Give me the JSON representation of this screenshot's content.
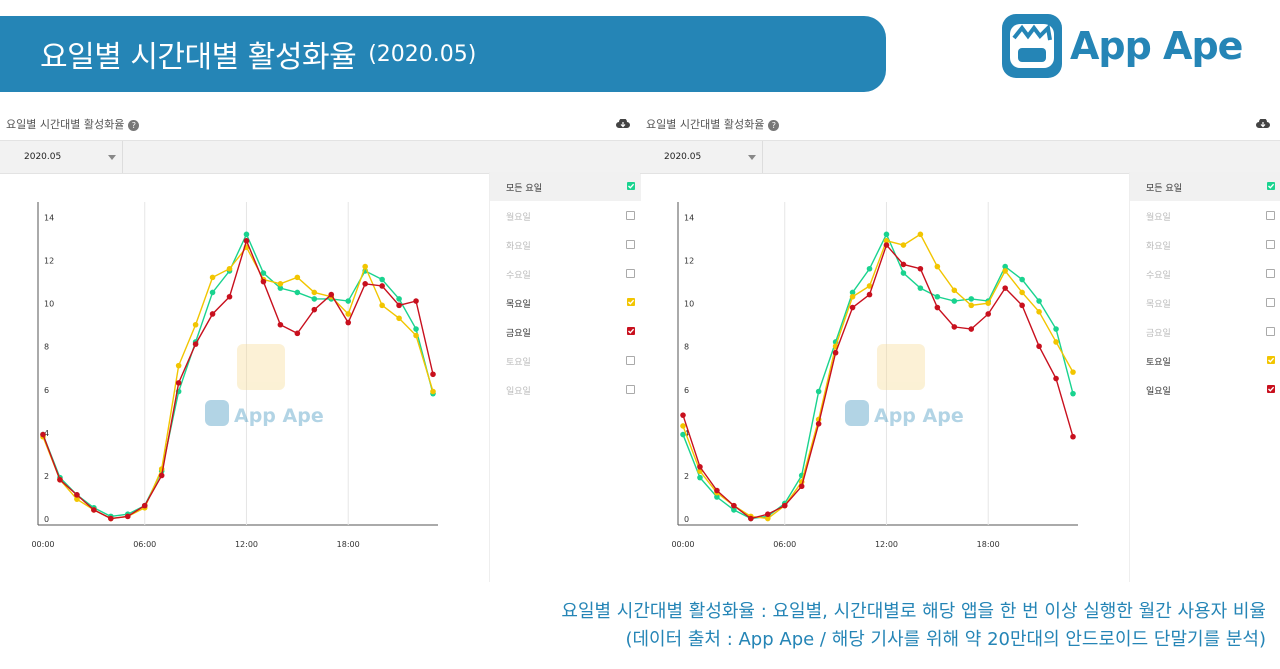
{
  "banner": {
    "title": "요일별 시간대별 활성화율",
    "period": "(2020.05)"
  },
  "logo": {
    "text": "App Ape"
  },
  "footer": {
    "line1": "요일별 시간대별 활성화율 : 요일별, 시간대별로 해당 앱을 한 번 이상 실행한 월간 사용자 비율",
    "line2": "(데이터 출처 : App Ape / 해당 기사를 위해 약 20만대의 안드로이드 단말기를 분석)"
  },
  "panels": [
    {
      "header": "요일별 시간대별 활성화율",
      "help": "?",
      "dropdown": "2020.05",
      "legend": [
        {
          "label": "모든 요일",
          "checked": true,
          "color": "#19d38f"
        },
        {
          "label": "월요일",
          "checked": false,
          "color": ""
        },
        {
          "label": "화요일",
          "checked": false,
          "color": ""
        },
        {
          "label": "수요일",
          "checked": false,
          "color": ""
        },
        {
          "label": "목요일",
          "checked": true,
          "color": "#f2c500"
        },
        {
          "label": "금요일",
          "checked": true,
          "color": "#c8101e"
        },
        {
          "label": "토요일",
          "checked": false,
          "color": ""
        },
        {
          "label": "일요일",
          "checked": false,
          "color": ""
        }
      ],
      "watermark": "App Ape"
    },
    {
      "header": "요일별 시간대별 활성화율",
      "help": "?",
      "dropdown": "2020.05",
      "legend": [
        {
          "label": "모든 요일",
          "checked": true,
          "color": "#19d38f"
        },
        {
          "label": "월요일",
          "checked": false,
          "color": ""
        },
        {
          "label": "화요일",
          "checked": false,
          "color": ""
        },
        {
          "label": "수요일",
          "checked": false,
          "color": ""
        },
        {
          "label": "목요일",
          "checked": false,
          "color": ""
        },
        {
          "label": "금요일",
          "checked": false,
          "color": ""
        },
        {
          "label": "토요일",
          "checked": true,
          "color": "#f2c500"
        },
        {
          "label": "일요일",
          "checked": true,
          "color": "#c8101e"
        }
      ],
      "watermark": "App Ape"
    }
  ],
  "chart_data": [
    {
      "type": "line",
      "title": "요일별 시간대별 활성화율",
      "x": [
        0,
        1,
        2,
        3,
        4,
        5,
        6,
        7,
        8,
        9,
        10,
        11,
        12,
        13,
        14,
        15,
        16,
        17,
        18,
        19,
        20,
        21,
        22,
        23
      ],
      "xticks": [
        "00:00",
        "06:00",
        "12:00",
        "18:00"
      ],
      "ylim": [
        0,
        15
      ],
      "yticks": [
        0,
        2,
        4,
        6,
        8,
        10,
        12,
        14
      ],
      "series": [
        {
          "name": "모든 요일",
          "color": "#19d38f",
          "values": [
            4.2,
            2.2,
            1.4,
            0.8,
            0.4,
            0.5,
            0.9,
            2.5,
            6.2,
            8.5,
            10.8,
            11.8,
            13.5,
            11.7,
            11.0,
            10.8,
            10.5,
            10.5,
            10.4,
            11.8,
            11.4,
            10.5,
            9.1,
            6.1
          ]
        },
        {
          "name": "목요일",
          "color": "#f2c500",
          "values": [
            4.1,
            2.1,
            1.2,
            0.7,
            0.3,
            0.4,
            0.8,
            2.6,
            7.4,
            9.3,
            11.5,
            11.9,
            12.9,
            11.4,
            11.2,
            11.5,
            10.8,
            10.6,
            9.8,
            12.0,
            10.2,
            9.6,
            8.8,
            6.2
          ]
        },
        {
          "name": "금요일",
          "color": "#c8101e",
          "values": [
            4.2,
            2.1,
            1.4,
            0.7,
            0.3,
            0.4,
            0.9,
            2.3,
            6.6,
            8.4,
            9.8,
            10.6,
            13.2,
            11.3,
            9.3,
            8.9,
            10.0,
            10.7,
            9.4,
            11.2,
            11.1,
            10.2,
            10.4,
            7.0
          ]
        }
      ]
    },
    {
      "type": "line",
      "title": "요일별 시간대별 활성화율",
      "x": [
        0,
        1,
        2,
        3,
        4,
        5,
        6,
        7,
        8,
        9,
        10,
        11,
        12,
        13,
        14,
        15,
        16,
        17,
        18,
        19,
        20,
        21,
        22,
        23
      ],
      "xticks": [
        "00:00",
        "06:00",
        "12:00",
        "18:00"
      ],
      "ylim": [
        0,
        15
      ],
      "yticks": [
        0,
        2,
        4,
        6,
        8,
        10,
        12,
        14
      ],
      "series": [
        {
          "name": "모든 요일",
          "color": "#19d38f",
          "values": [
            4.2,
            2.2,
            1.3,
            0.7,
            0.3,
            0.4,
            1.0,
            2.3,
            6.2,
            8.5,
            10.8,
            11.9,
            13.5,
            11.7,
            11.0,
            10.6,
            10.4,
            10.5,
            10.4,
            12.0,
            11.4,
            10.4,
            9.1,
            6.1
          ]
        },
        {
          "name": "토요일",
          "color": "#f2c500",
          "values": [
            4.6,
            2.5,
            1.5,
            0.9,
            0.4,
            0.3,
            0.9,
            2.0,
            4.9,
            8.3,
            10.6,
            11.1,
            13.2,
            13.0,
            13.5,
            12.0,
            10.9,
            10.2,
            10.3,
            11.8,
            10.8,
            9.9,
            8.5,
            7.1
          ]
        },
        {
          "name": "일요일",
          "color": "#c8101e",
          "values": [
            5.1,
            2.7,
            1.6,
            0.9,
            0.3,
            0.5,
            0.9,
            1.8,
            4.7,
            8.0,
            10.1,
            10.7,
            13.0,
            12.1,
            11.9,
            10.1,
            9.2,
            9.1,
            9.8,
            11.0,
            10.2,
            8.3,
            6.8,
            4.1
          ]
        }
      ]
    }
  ]
}
